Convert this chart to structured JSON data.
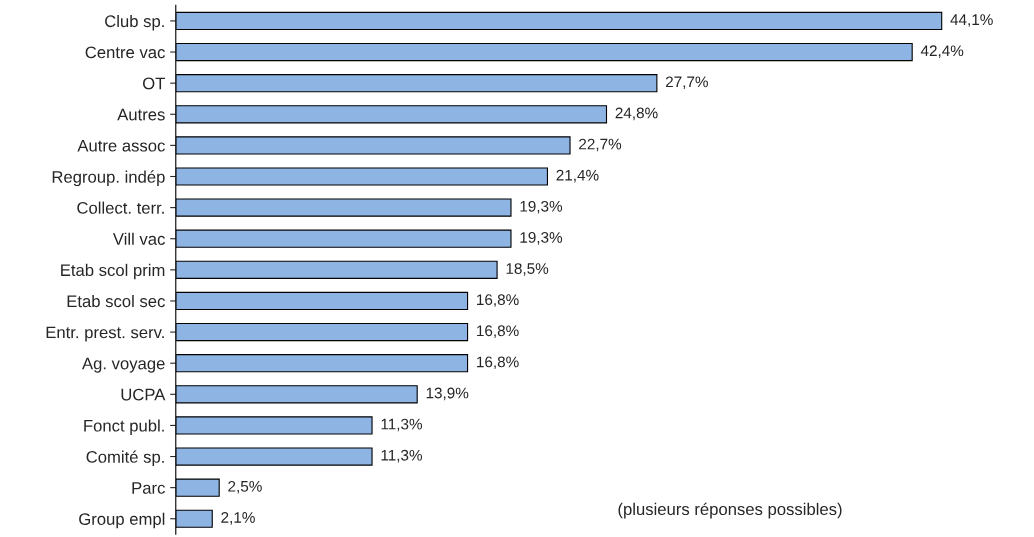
{
  "chart_data": {
    "type": "bar",
    "orientation": "horizontal",
    "categories": [
      "Club sp.",
      "Centre vac",
      "OT",
      "Autres",
      "Autre assoc",
      "Regroup. indép",
      "Collect. terr.",
      "Vill vac",
      "Etab scol prim",
      "Etab scol sec",
      "Entr. prest. serv.",
      "Ag. voyage",
      "UCPA",
      "Fonct publ.",
      "Comité sp.",
      "Parc",
      "Group empl"
    ],
    "values": [
      44.1,
      42.4,
      27.7,
      24.8,
      22.7,
      21.4,
      19.3,
      19.3,
      18.5,
      16.8,
      16.8,
      16.8,
      13.9,
      11.3,
      11.3,
      2.5,
      2.1
    ],
    "value_labels": [
      "44,1%",
      "42,4%",
      "27,7%",
      "24,8%",
      "22,7%",
      "21,4%",
      "19,3%",
      "19,3%",
      "18,5%",
      "16,8%",
      "16,8%",
      "16,8%",
      "13,9%",
      "11,3%",
      "11,3%",
      "2,5%",
      "2,1%"
    ],
    "color": "#8eb4e3",
    "annotations": [
      "(plusieurs réponses possibles)"
    ]
  }
}
